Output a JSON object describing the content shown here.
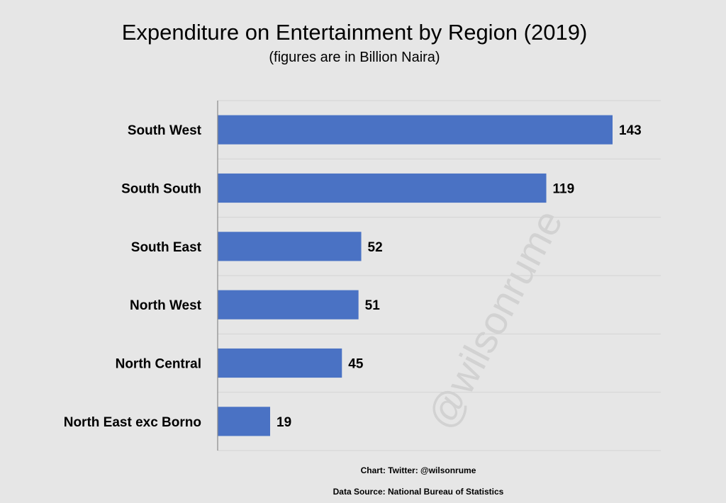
{
  "chart_data": {
    "type": "bar",
    "orientation": "horizontal",
    "title": "Expenditure on Entertainment by Region (2019)",
    "subtitle": "(figures are in Billion Naira)",
    "categories": [
      "South West",
      "South South",
      "South East",
      "North West",
      "North Central",
      "North East exc Borno"
    ],
    "values": [
      143,
      119,
      52,
      51,
      45,
      19
    ],
    "xlim": [
      0,
      160
    ],
    "grid": true,
    "bar_color": "#4a72c4"
  },
  "watermark": "@wilsonrume",
  "footer": {
    "credit": "Chart: Twitter: @wilsonrume",
    "source": "Data Source: National Bureau of Statistics"
  }
}
